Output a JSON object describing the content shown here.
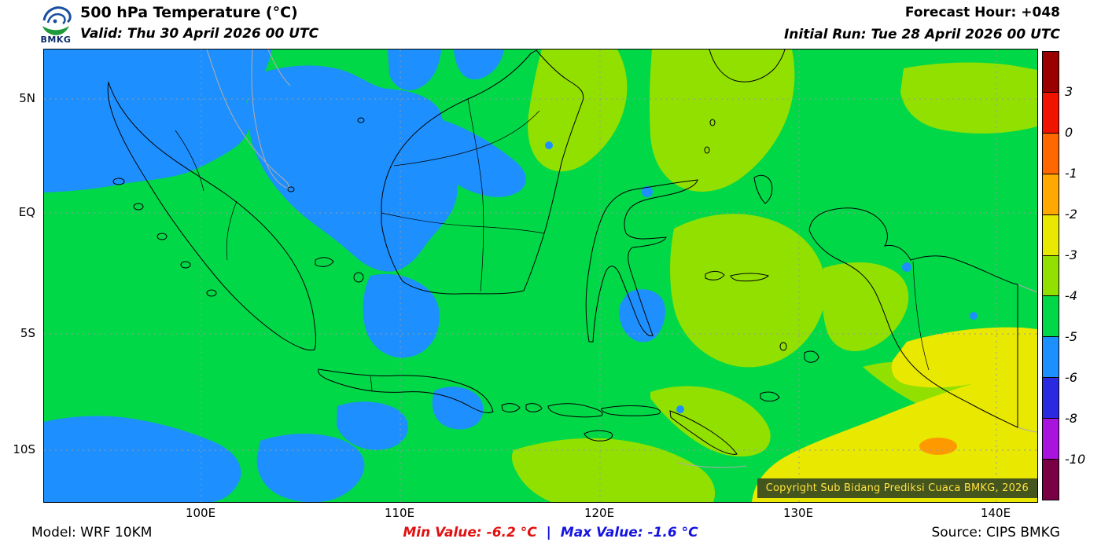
{
  "header": {
    "logo_text": "BMKG",
    "title": "500 hPa Temperature (°C)",
    "valid": "Valid: Thu 30 April 2026 00 UTC",
    "forecast_hour": "Forecast Hour: +048",
    "initial_run": "Initial Run: Tue 28 April 2026 00 UTC"
  },
  "map": {
    "y_labels": [
      "5N",
      "EQ",
      "5S",
      "10S"
    ],
    "x_labels": [
      "100E",
      "110E",
      "120E",
      "130E",
      "140E"
    ],
    "copyright": "Copyright Sub Bidang Prediksi Cuaca BMKG, 2026"
  },
  "colorbar": {
    "labels": [
      "3",
      "0",
      "-1",
      "-2",
      "-3",
      "-4",
      "-5",
      "-6",
      "-8",
      "-10"
    ],
    "colors": [
      "#9b0000",
      "#f01400",
      "#ff6800",
      "#ffa800",
      "#e8e800",
      "#91e000",
      "#00d848",
      "#1e8fff",
      "#2a2ae0",
      "#a814dd",
      "#7a0045"
    ]
  },
  "palette": {
    "map_green": "#00d848",
    "map_blue": "#1e8fff",
    "map_yellow_green": "#91e000",
    "map_yellow": "#e8e800",
    "map_orange": "#ff9900",
    "min_color": "#e01010",
    "max_color": "#1414e0",
    "copyright_bg": "#44551e",
    "copyright_text": "#ffe33e"
  },
  "footer": {
    "model": "Model: WRF 10KM",
    "min_label": "Min Value: -6.2 °C",
    "separator": "|",
    "max_label": "Max Value: -1.6 °C",
    "source": "Source: CIPS BMKG"
  },
  "chart_data": {
    "type": "heatmap",
    "title": "500 hPa Temperature (°C)",
    "x_ticks": [
      "100E",
      "110E",
      "120E",
      "130E",
      "140E"
    ],
    "y_ticks": [
      "5N",
      "EQ",
      "5S",
      "10S"
    ],
    "colorbar_levels_c": [
      3,
      0,
      -1,
      -2,
      -3,
      -4,
      -5,
      -6,
      -8,
      -10
    ],
    "min_value_c": -6.2,
    "max_value_c": -1.6,
    "summary": "Most of the domain is -5 to -4 °C (green). -6 to -5 °C (blue) covers the northwest (Malacca Strait, Sumatra, west Borneo), the southwest Indian Ocean corner and waters south of Java plus the Makassar Strait. -4 to -3 °C (yellow-green) covers the northeast (Celebes Sea, Philippines, north Borneo) and eastern seas. -3 to -2 °C (yellow) covers the Arafura Sea in the southeast with a small -2 to -1 °C (orange) spot near 135E 10.5S."
  }
}
